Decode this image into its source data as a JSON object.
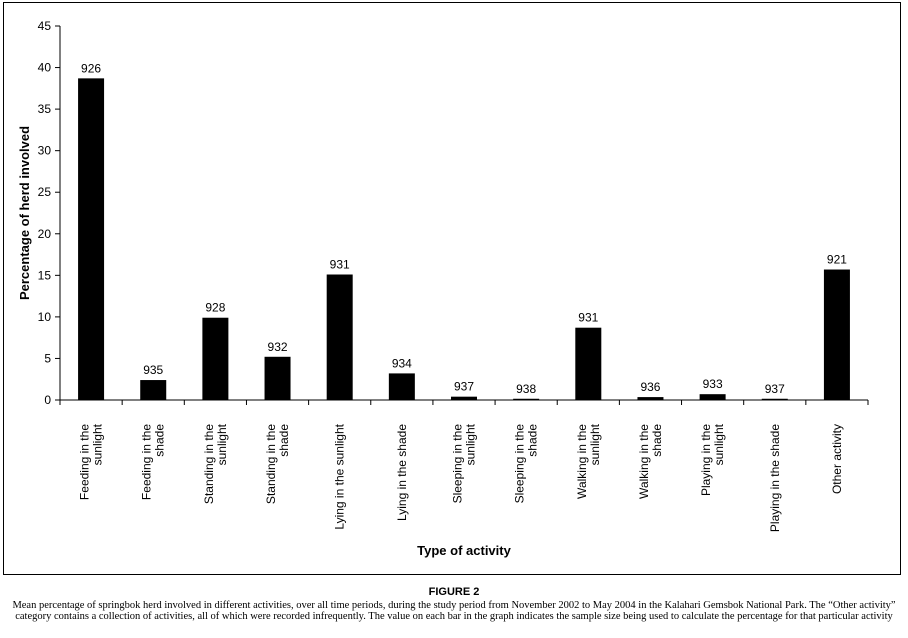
{
  "chart_data": {
    "type": "bar",
    "xlabel": "Type of activity",
    "ylabel": "Percentage of herd involved",
    "ylim": [
      0,
      45
    ],
    "yticks": [
      0,
      5,
      10,
      15,
      20,
      25,
      30,
      35,
      40,
      45
    ],
    "grid": false,
    "bar_color": "#000000",
    "categories": [
      [
        "Feeding in the",
        "sunlight"
      ],
      [
        "Feeding in the",
        "shade"
      ],
      [
        "Standing in the",
        "sunlight"
      ],
      [
        "Standing in the",
        "shade"
      ],
      [
        "Lying in the sunlight"
      ],
      [
        "Lying in the shade"
      ],
      [
        "Sleeping in the",
        "sunlight"
      ],
      [
        "Sleeping in the",
        "shade"
      ],
      [
        "Walking in the",
        "sunlight"
      ],
      [
        "Walking in the",
        "shade"
      ],
      [
        "Playing in the",
        "sunlight"
      ],
      [
        "Playing in the shade"
      ],
      [
        "Other activity"
      ]
    ],
    "values": [
      38.7,
      2.4,
      9.9,
      5.2,
      15.1,
      3.2,
      0.4,
      0.15,
      8.7,
      0.35,
      0.7,
      0.15,
      15.7
    ],
    "data_labels": [
      "926",
      "935",
      "928",
      "932",
      "931",
      "934",
      "937",
      "938",
      "931",
      "936",
      "933",
      "937",
      "921"
    ]
  },
  "caption": {
    "title": "FIGURE 2",
    "text": "Mean percentage of springbok herd involved in different activities, over all time periods, during the study period from November 2002 to May 2004 in the Kalahari Gemsbok National Park. The “Other activity” category contains a collection of activities, all of which were recorded infrequently. The value on each bar in the graph indicates the sample size being used to calculate the percentage for that particular activity"
  }
}
